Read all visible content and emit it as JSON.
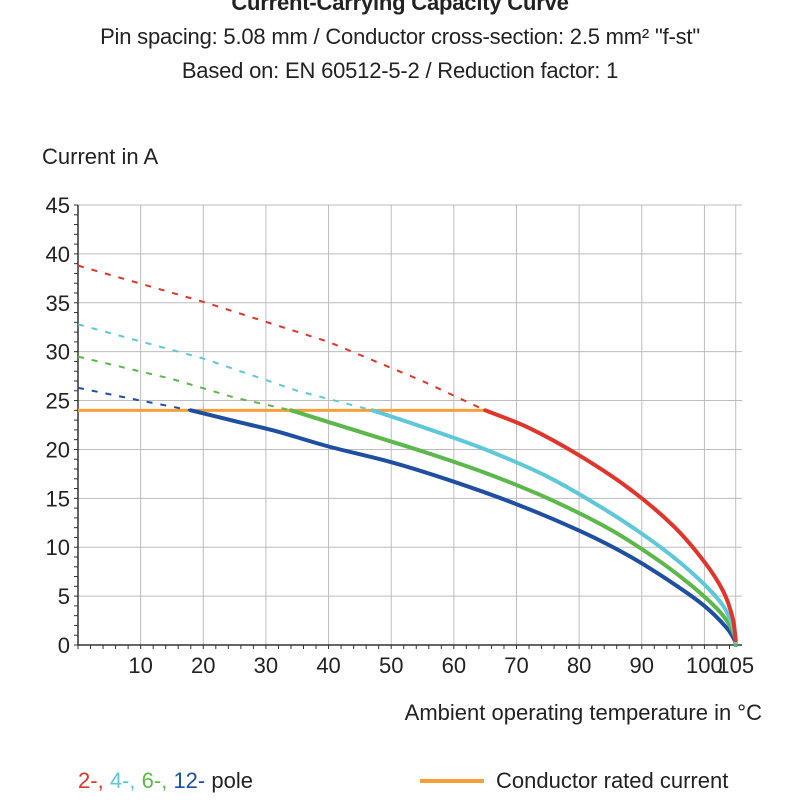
{
  "header": {
    "title": "Current-Carrying Capacity Curve",
    "line2": "Pin spacing: 5.08 mm / Conductor cross-section: 2.5 mm² \"f-st\"",
    "line3": "Based on: EN 60512-5-2 / Reduction factor: 1"
  },
  "legend": {
    "p2": "2-",
    "p4": "4-",
    "p6": "6-",
    "p12": "12-",
    "sep": ",",
    "suffix": "pole",
    "rated": "Conductor rated current"
  },
  "colors": {
    "p2": "#e0352b",
    "p4": "#5ec8d8",
    "p6": "#5cb84a",
    "p12": "#1e4fa0",
    "rated": "#f7a03a"
  },
  "chart_data": {
    "type": "line",
    "title": "Current-Carrying Capacity Curve",
    "xlabel": "Ambient operating temperature in °C",
    "ylabel": "Current in A",
    "xlim": [
      0,
      106
    ],
    "ylim": [
      0,
      45
    ],
    "xticks": [
      10,
      20,
      30,
      40,
      50,
      60,
      70,
      80,
      90,
      100,
      105
    ],
    "yticks": [
      0,
      5,
      10,
      15,
      20,
      25,
      30,
      35,
      40,
      45
    ],
    "grid": true,
    "rated_current": {
      "name": "Conductor rated current",
      "value": 24,
      "x_range": [
        0,
        65
      ]
    },
    "series": [
      {
        "key": "p2",
        "name": "2-",
        "dashed": [
          [
            0,
            38.8
          ],
          [
            20,
            35.1
          ],
          [
            40,
            31
          ],
          [
            55,
            27
          ],
          [
            65,
            24
          ]
        ],
        "solid": [
          [
            65,
            24
          ],
          [
            72,
            22.2
          ],
          [
            80,
            19.4
          ],
          [
            88,
            16
          ],
          [
            95,
            12.2
          ],
          [
            100,
            8.5
          ],
          [
            103,
            5.5
          ],
          [
            104.5,
            2.8
          ],
          [
            105,
            0.5
          ]
        ]
      },
      {
        "key": "p4",
        "name": "4-",
        "dashed": [
          [
            0,
            32.8
          ],
          [
            20,
            29.3
          ],
          [
            35,
            26
          ],
          [
            47,
            24
          ]
        ],
        "solid": [
          [
            47,
            24
          ],
          [
            55,
            22.3
          ],
          [
            65,
            20
          ],
          [
            75,
            17.2
          ],
          [
            85,
            13.5
          ],
          [
            93,
            10
          ],
          [
            99,
            6.8
          ],
          [
            103,
            4
          ],
          [
            104.7,
            1.5
          ],
          [
            105,
            0.3
          ]
        ]
      },
      {
        "key": "p6",
        "name": "6-",
        "dashed": [
          [
            0,
            29.5
          ],
          [
            15,
            27.2
          ],
          [
            25,
            25.3
          ],
          [
            34,
            24
          ]
        ],
        "solid": [
          [
            34,
            24
          ],
          [
            45,
            21.8
          ],
          [
            55,
            19.8
          ],
          [
            65,
            17.6
          ],
          [
            75,
            15
          ],
          [
            85,
            11.8
          ],
          [
            93,
            8.5
          ],
          [
            99,
            5.5
          ],
          [
            103,
            3
          ],
          [
            104.8,
            1
          ],
          [
            105,
            0
          ]
        ]
      },
      {
        "key": "p12",
        "name": "12-",
        "dashed": [
          [
            0,
            26.3
          ],
          [
            10,
            25
          ],
          [
            18,
            24
          ]
        ],
        "solid": [
          [
            18,
            24
          ],
          [
            25,
            22.9
          ],
          [
            32,
            21.8
          ],
          [
            40,
            20.3
          ],
          [
            50,
            18.7
          ],
          [
            60,
            16.7
          ],
          [
            70,
            14.4
          ],
          [
            80,
            11.7
          ],
          [
            88,
            9.1
          ],
          [
            95,
            6.3
          ],
          [
            100,
            4
          ],
          [
            103.5,
            1.8
          ],
          [
            104.8,
            0.5
          ],
          [
            105,
            0
          ]
        ]
      }
    ]
  }
}
